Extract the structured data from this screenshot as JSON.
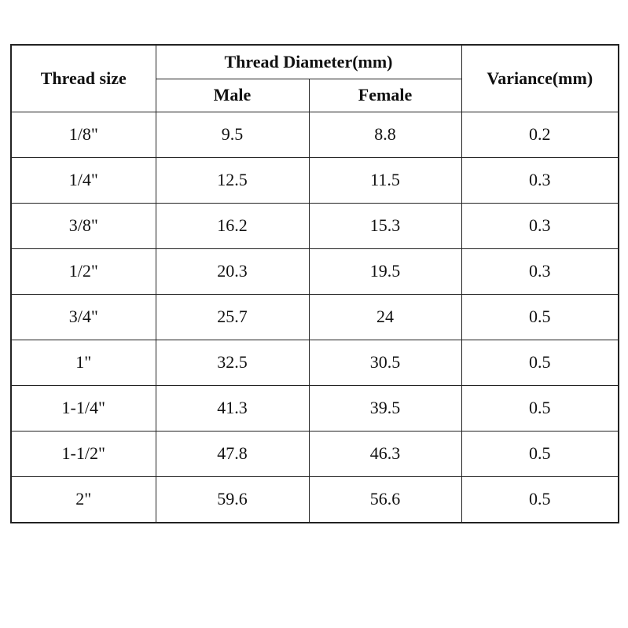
{
  "table": {
    "headers": {
      "thread_size": "Thread size",
      "thread_diameter": "Thread Diameter(mm)",
      "male": "Male",
      "female": "Female",
      "variance": "Variance(mm)"
    },
    "rows": [
      [
        "1/8\"",
        "9.5",
        "8.8",
        "0.2"
      ],
      [
        "1/4\"",
        "12.5",
        "11.5",
        "0.3"
      ],
      [
        "3/8\"",
        "16.2",
        "15.3",
        "0.3"
      ],
      [
        "1/2\"",
        "20.3",
        "19.5",
        "0.3"
      ],
      [
        "3/4\"",
        "25.7",
        "24",
        "0.5"
      ],
      [
        "1\"",
        "32.5",
        "30.5",
        "0.5"
      ],
      [
        "1-1/4\"",
        "41.3",
        "39.5",
        "0.5"
      ],
      [
        "1-1/2\"",
        "47.8",
        "46.3",
        "0.5"
      ],
      [
        "2\"",
        "59.6",
        "56.6",
        "0.5"
      ]
    ]
  }
}
